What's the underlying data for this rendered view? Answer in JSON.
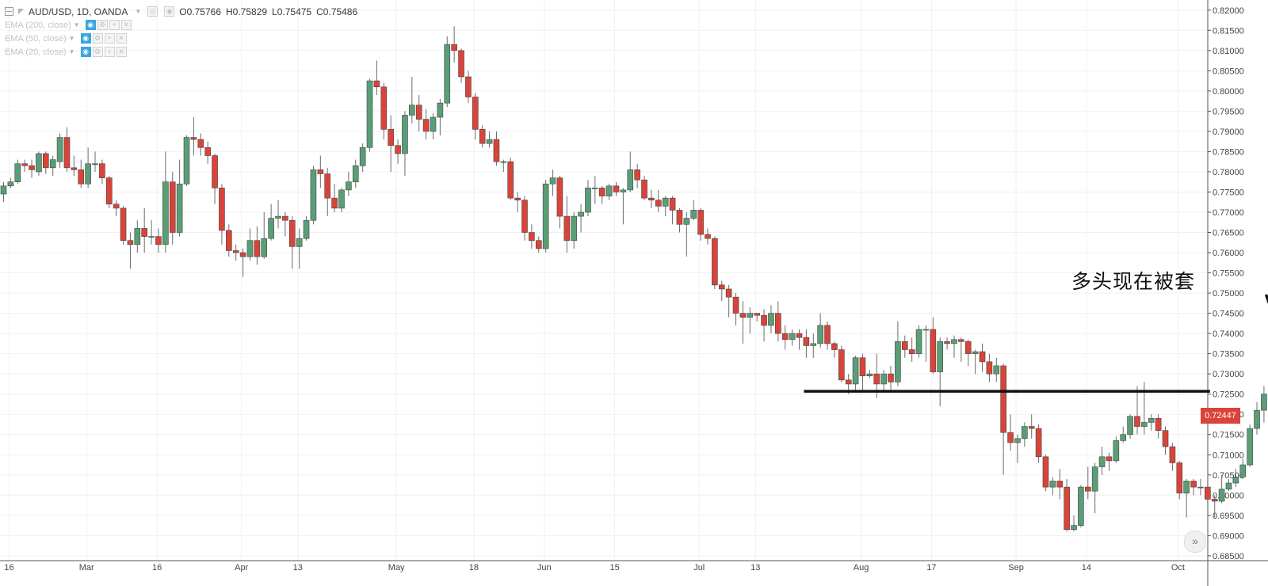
{
  "legend": {
    "symbol_text": "AUD/USD, 1D, OANDA",
    "open": "O0.75766",
    "high": "H0.75829",
    "low": "L0.75475",
    "close": "C0.75486",
    "indicators": [
      "EMA (200, close)",
      "EMA (50, close)",
      "EMA (20, close)"
    ]
  },
  "annotation_text": "多头现在被套",
  "current_price_label": "0.72447",
  "scroll_button_label": "»",
  "colors": {
    "up": "#5a9e76",
    "down": "#d9443a",
    "grid": "#eef0f3",
    "line": "#111111",
    "label_bg": "#d9443a"
  },
  "chart_data": {
    "type": "candlestick",
    "title": "AUD/USD, 1D, OANDA",
    "ylim": [
      0.6838,
      0.8225
    ],
    "y_ticks": [
      "0.82000",
      "0.81500",
      "0.81000",
      "0.80500",
      "0.80000",
      "0.79500",
      "0.79000",
      "0.78500",
      "0.78000",
      "0.77500",
      "0.77000",
      "0.76500",
      "0.76000",
      "0.75500",
      "0.75000",
      "0.74500",
      "0.74000",
      "0.73500",
      "0.73000",
      "0.72500",
      "0.72000",
      "0.71500",
      "0.71000",
      "0.70500",
      "0.70000",
      "0.69500",
      "0.69000",
      "0.68500"
    ],
    "x_ticks": [
      {
        "label": "16",
        "bar": 0
      },
      {
        "label": "Mar",
        "bar": 11
      },
      {
        "label": "16",
        "bar": 21
      },
      {
        "label": "Apr",
        "bar": 33
      },
      {
        "label": "13",
        "bar": 41
      },
      {
        "label": "May",
        "bar": 55
      },
      {
        "label": "18",
        "bar": 66
      },
      {
        "label": "Jun",
        "bar": 76
      },
      {
        "label": "15",
        "bar": 86
      },
      {
        "label": "Jul",
        "bar": 98
      },
      {
        "label": "13",
        "bar": 106
      },
      {
        "label": "Aug",
        "bar": 121
      },
      {
        "label": "17",
        "bar": 131
      },
      {
        "label": "Sep",
        "bar": 143
      },
      {
        "label": "14",
        "bar": 153
      },
      {
        "label": "Oct",
        "bar": 166
      }
    ],
    "horizontal_level": {
      "price": 0.7257,
      "from_bar": 114,
      "to_bar": 171
    },
    "candles": [
      [
        0.7745,
        0.7765,
        0.7725,
        0.7775
      ],
      [
        0.7765,
        0.7775,
        0.776,
        0.7785
      ],
      [
        0.7775,
        0.782,
        0.777,
        0.783
      ],
      [
        0.782,
        0.7815,
        0.78,
        0.783
      ],
      [
        0.7815,
        0.7805,
        0.7785,
        0.783
      ],
      [
        0.78,
        0.7845,
        0.779,
        0.785
      ],
      [
        0.7845,
        0.781,
        0.7795,
        0.785
      ],
      [
        0.781,
        0.783,
        0.779,
        0.784
      ],
      [
        0.7825,
        0.7885,
        0.781,
        0.7895
      ],
      [
        0.7885,
        0.781,
        0.78,
        0.791
      ],
      [
        0.781,
        0.7805,
        0.779,
        0.784
      ],
      [
        0.7805,
        0.777,
        0.776,
        0.783
      ],
      [
        0.777,
        0.782,
        0.776,
        0.786
      ],
      [
        0.782,
        0.782,
        0.78,
        0.785
      ],
      [
        0.782,
        0.7785,
        0.777,
        0.783
      ],
      [
        0.7785,
        0.772,
        0.771,
        0.779
      ],
      [
        0.772,
        0.771,
        0.769,
        0.773
      ],
      [
        0.771,
        0.763,
        0.762,
        0.7715
      ],
      [
        0.763,
        0.762,
        0.756,
        0.765
      ],
      [
        0.762,
        0.766,
        0.76,
        0.768
      ],
      [
        0.766,
        0.764,
        0.76,
        0.771
      ],
      [
        0.764,
        0.764,
        0.762,
        0.768
      ],
      [
        0.764,
        0.762,
        0.76,
        0.766
      ],
      [
        0.762,
        0.7775,
        0.76,
        0.785
      ],
      [
        0.7775,
        0.765,
        0.762,
        0.78
      ],
      [
        0.765,
        0.777,
        0.764,
        0.783
      ],
      [
        0.777,
        0.7885,
        0.7765,
        0.789
      ],
      [
        0.7885,
        0.788,
        0.784,
        0.7935
      ],
      [
        0.788,
        0.786,
        0.784,
        0.7895
      ],
      [
        0.786,
        0.784,
        0.782,
        0.7875
      ],
      [
        0.784,
        0.776,
        0.772,
        0.7845
      ],
      [
        0.776,
        0.7655,
        0.762,
        0.777
      ],
      [
        0.7655,
        0.7605,
        0.759,
        0.767
      ],
      [
        0.7605,
        0.76,
        0.758,
        0.762
      ],
      [
        0.76,
        0.759,
        0.754,
        0.761
      ],
      [
        0.759,
        0.763,
        0.758,
        0.766
      ],
      [
        0.763,
        0.759,
        0.757,
        0.7665
      ],
      [
        0.759,
        0.7635,
        0.7585,
        0.77
      ],
      [
        0.7635,
        0.7685,
        0.763,
        0.772
      ],
      [
        0.7685,
        0.769,
        0.766,
        0.773
      ],
      [
        0.769,
        0.768,
        0.764,
        0.77
      ],
      [
        0.768,
        0.7615,
        0.756,
        0.769
      ],
      [
        0.7615,
        0.7635,
        0.756,
        0.766
      ],
      [
        0.7635,
        0.768,
        0.763,
        0.769
      ],
      [
        0.768,
        0.7805,
        0.767,
        0.7815
      ],
      [
        0.7805,
        0.7795,
        0.776,
        0.784
      ],
      [
        0.7795,
        0.7735,
        0.769,
        0.781
      ],
      [
        0.7735,
        0.771,
        0.77,
        0.777
      ],
      [
        0.771,
        0.7755,
        0.77,
        0.776
      ],
      [
        0.7755,
        0.7775,
        0.774,
        0.78
      ],
      [
        0.7775,
        0.7815,
        0.776,
        0.783
      ],
      [
        0.7815,
        0.786,
        0.78,
        0.787
      ],
      [
        0.786,
        0.8025,
        0.785,
        0.803
      ],
      [
        0.8025,
        0.801,
        0.799,
        0.8075
      ],
      [
        0.801,
        0.7905,
        0.788,
        0.802
      ],
      [
        0.7905,
        0.7865,
        0.78,
        0.794
      ],
      [
        0.7865,
        0.7845,
        0.782,
        0.788
      ],
      [
        0.7845,
        0.794,
        0.779,
        0.795
      ],
      [
        0.794,
        0.7965,
        0.792,
        0.8035
      ],
      [
        0.7965,
        0.793,
        0.79,
        0.799
      ],
      [
        0.793,
        0.79,
        0.788,
        0.7955
      ],
      [
        0.79,
        0.7935,
        0.788,
        0.7945
      ],
      [
        0.7935,
        0.797,
        0.789,
        0.798
      ],
      [
        0.797,
        0.8115,
        0.796,
        0.8135
      ],
      [
        0.8115,
        0.81,
        0.807,
        0.816
      ],
      [
        0.81,
        0.8035,
        0.802,
        0.8105
      ],
      [
        0.8035,
        0.7985,
        0.797,
        0.805
      ],
      [
        0.7985,
        0.7905,
        0.788,
        0.7995
      ],
      [
        0.7905,
        0.787,
        0.786,
        0.7915
      ],
      [
        0.787,
        0.788,
        0.786,
        0.79
      ],
      [
        0.788,
        0.7825,
        0.7815,
        0.79
      ],
      [
        0.7825,
        0.7825,
        0.78,
        0.783
      ],
      [
        0.7825,
        0.7735,
        0.773,
        0.7835
      ],
      [
        0.7735,
        0.773,
        0.77,
        0.775
      ],
      [
        0.773,
        0.765,
        0.763,
        0.774
      ],
      [
        0.765,
        0.763,
        0.761,
        0.767
      ],
      [
        0.763,
        0.761,
        0.76,
        0.764
      ],
      [
        0.761,
        0.777,
        0.76,
        0.778
      ],
      [
        0.777,
        0.7785,
        0.774,
        0.7805
      ],
      [
        0.7785,
        0.769,
        0.766,
        0.779
      ],
      [
        0.769,
        0.763,
        0.76,
        0.774
      ],
      [
        0.763,
        0.769,
        0.761,
        0.77
      ],
      [
        0.769,
        0.77,
        0.765,
        0.772
      ],
      [
        0.77,
        0.776,
        0.769,
        0.778
      ],
      [
        0.776,
        0.776,
        0.772,
        0.779
      ],
      [
        0.776,
        0.774,
        0.772,
        0.7765
      ],
      [
        0.774,
        0.7765,
        0.773,
        0.777
      ],
      [
        0.7765,
        0.775,
        0.774,
        0.7775
      ],
      [
        0.775,
        0.7755,
        0.767,
        0.776
      ],
      [
        0.7755,
        0.7805,
        0.775,
        0.785
      ],
      [
        0.7805,
        0.778,
        0.776,
        0.782
      ],
      [
        0.778,
        0.7735,
        0.773,
        0.779
      ],
      [
        0.7735,
        0.773,
        0.771,
        0.7755
      ],
      [
        0.773,
        0.7715,
        0.77,
        0.7755
      ],
      [
        0.7715,
        0.7735,
        0.769,
        0.774
      ],
      [
        0.7735,
        0.7705,
        0.767,
        0.774
      ],
      [
        0.7705,
        0.767,
        0.765,
        0.771
      ],
      [
        0.767,
        0.7685,
        0.759,
        0.77
      ],
      [
        0.7685,
        0.7705,
        0.768,
        0.773
      ],
      [
        0.7705,
        0.7645,
        0.763,
        0.771
      ],
      [
        0.7645,
        0.7635,
        0.762,
        0.766
      ],
      [
        0.7635,
        0.752,
        0.751,
        0.764
      ],
      [
        0.752,
        0.751,
        0.748,
        0.753
      ],
      [
        0.751,
        0.749,
        0.744,
        0.752
      ],
      [
        0.749,
        0.745,
        0.742,
        0.75
      ],
      [
        0.745,
        0.744,
        0.7375,
        0.748
      ],
      [
        0.744,
        0.745,
        0.74,
        0.7465
      ],
      [
        0.745,
        0.7445,
        0.743,
        0.745
      ],
      [
        0.7445,
        0.742,
        0.738,
        0.746
      ],
      [
        0.742,
        0.745,
        0.74,
        0.747
      ],
      [
        0.745,
        0.74,
        0.738,
        0.748
      ],
      [
        0.74,
        0.7385,
        0.736,
        0.742
      ],
      [
        0.7385,
        0.74,
        0.737,
        0.741
      ],
      [
        0.74,
        0.739,
        0.736,
        0.741
      ],
      [
        0.739,
        0.737,
        0.734,
        0.741
      ],
      [
        0.737,
        0.7375,
        0.734,
        0.74
      ],
      [
        0.7375,
        0.742,
        0.7365,
        0.745
      ],
      [
        0.742,
        0.7375,
        0.736,
        0.743
      ],
      [
        0.7375,
        0.736,
        0.734,
        0.738
      ],
      [
        0.736,
        0.7285,
        0.728,
        0.737
      ],
      [
        0.7285,
        0.7275,
        0.725,
        0.73
      ],
      [
        0.7275,
        0.734,
        0.7255,
        0.7345
      ],
      [
        0.734,
        0.7295,
        0.726,
        0.735
      ],
      [
        0.7295,
        0.73,
        0.729,
        0.731
      ],
      [
        0.73,
        0.7275,
        0.724,
        0.735
      ],
      [
        0.7275,
        0.73,
        0.726,
        0.731
      ],
      [
        0.73,
        0.728,
        0.7255,
        0.732
      ],
      [
        0.728,
        0.738,
        0.727,
        0.743
      ],
      [
        0.738,
        0.736,
        0.734,
        0.7395
      ],
      [
        0.736,
        0.735,
        0.733,
        0.739
      ],
      [
        0.735,
        0.741,
        0.734,
        0.742
      ],
      [
        0.741,
        0.741,
        0.733,
        0.742
      ],
      [
        0.741,
        0.7305,
        0.73,
        0.744
      ],
      [
        0.7305,
        0.738,
        0.722,
        0.739
      ],
      [
        0.738,
        0.7375,
        0.736,
        0.739
      ],
      [
        0.7375,
        0.7385,
        0.734,
        0.7395
      ],
      [
        0.7385,
        0.738,
        0.733,
        0.739
      ],
      [
        0.738,
        0.735,
        0.732,
        0.7385
      ],
      [
        0.735,
        0.7355,
        0.73,
        0.736
      ],
      [
        0.7355,
        0.733,
        0.7305,
        0.7375
      ],
      [
        0.733,
        0.73,
        0.728,
        0.735
      ],
      [
        0.73,
        0.732,
        0.728,
        0.734
      ],
      [
        0.732,
        0.7155,
        0.705,
        0.7325
      ],
      [
        0.7155,
        0.713,
        0.711,
        0.72
      ],
      [
        0.713,
        0.714,
        0.708,
        0.715
      ],
      [
        0.714,
        0.717,
        0.712,
        0.718
      ],
      [
        0.717,
        0.7165,
        0.714,
        0.72
      ],
      [
        0.7165,
        0.7095,
        0.708,
        0.7175
      ],
      [
        0.7095,
        0.702,
        0.701,
        0.71
      ],
      [
        0.702,
        0.7035,
        0.7,
        0.7045
      ],
      [
        0.7035,
        0.702,
        0.699,
        0.7065
      ],
      [
        0.702,
        0.6915,
        0.691,
        0.704
      ],
      [
        0.6915,
        0.6925,
        0.691,
        0.695
      ],
      [
        0.6925,
        0.702,
        0.692,
        0.7025
      ],
      [
        0.702,
        0.701,
        0.699,
        0.707
      ],
      [
        0.701,
        0.707,
        0.6955,
        0.708
      ],
      [
        0.707,
        0.7095,
        0.705,
        0.712
      ],
      [
        0.7095,
        0.7085,
        0.706,
        0.7105
      ],
      [
        0.7085,
        0.7135,
        0.708,
        0.7145
      ],
      [
        0.7135,
        0.715,
        0.713,
        0.717
      ],
      [
        0.715,
        0.7195,
        0.714,
        0.72
      ],
      [
        0.7195,
        0.717,
        0.715,
        0.727
      ],
      [
        0.717,
        0.718,
        0.715,
        0.728
      ],
      [
        0.718,
        0.719,
        0.716,
        0.72
      ],
      [
        0.719,
        0.716,
        0.714,
        0.72
      ],
      [
        0.716,
        0.712,
        0.71,
        0.717
      ],
      [
        0.712,
        0.708,
        0.706,
        0.713
      ],
      [
        0.708,
        0.7005,
        0.699,
        0.7085
      ],
      [
        0.7005,
        0.7035,
        0.6945,
        0.704
      ],
      [
        0.7035,
        0.702,
        0.7,
        0.704
      ],
      [
        0.702,
        0.702,
        0.7,
        0.704
      ],
      [
        0.702,
        0.699,
        0.698,
        0.7035
      ],
      [
        0.699,
        0.6985,
        0.6945,
        0.7
      ],
      [
        0.6985,
        0.7015,
        0.698,
        0.705
      ],
      [
        0.7015,
        0.703,
        0.701,
        0.704
      ],
      [
        0.703,
        0.7045,
        0.702,
        0.7065
      ],
      [
        0.7045,
        0.7075,
        0.704,
        0.709
      ],
      [
        0.7075,
        0.7165,
        0.707,
        0.7175
      ],
      [
        0.7165,
        0.721,
        0.715,
        0.723
      ],
      [
        0.721,
        0.725,
        0.718,
        0.727
      ],
      [
        0.725,
        0.7335,
        0.724,
        0.7345
      ],
      [
        0.7335,
        0.736,
        0.73,
        0.737
      ],
      [
        0.736,
        0.7245,
        0.724,
        0.7365
      ]
    ]
  }
}
